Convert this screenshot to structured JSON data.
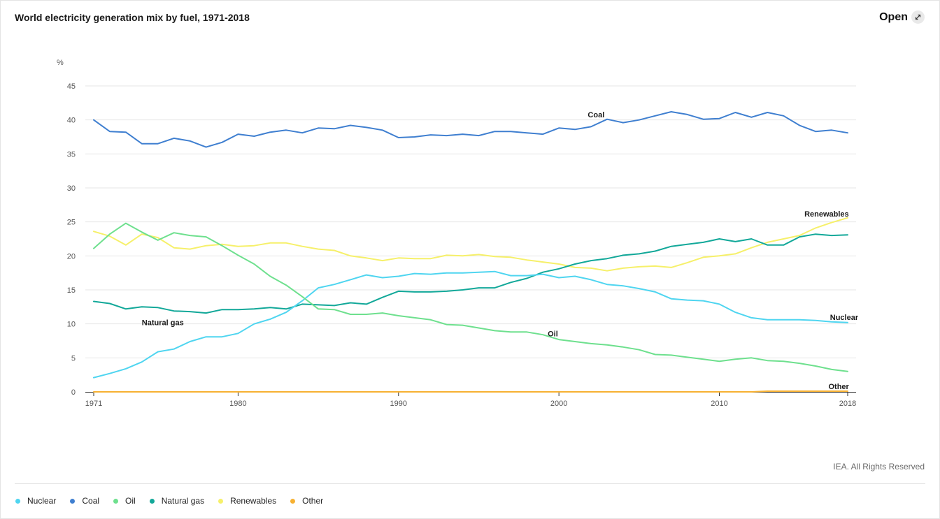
{
  "header": {
    "title": "World electricity generation mix by fuel, 1971-2018",
    "open_label": "Open",
    "open_icon": "expand-arrows-icon"
  },
  "footer": {
    "credit": "IEA. All Rights Reserved"
  },
  "colors": {
    "Nuclear": "#4fd5f0",
    "Coal": "#3f7fd0",
    "Oil": "#6ee08e",
    "Natural gas": "#12a899",
    "Renewables": "#f6f06a",
    "Other": "#f7b132"
  },
  "legend": [
    "Nuclear",
    "Coal",
    "Oil",
    "Natural gas",
    "Renewables",
    "Other"
  ],
  "chart_data": {
    "type": "line",
    "title": "World electricity generation mix by fuel, 1971-2018",
    "ylabel": "%",
    "xlabel": "",
    "ylim": [
      0,
      45
    ],
    "yticks": [
      0,
      5,
      10,
      15,
      20,
      25,
      30,
      35,
      40,
      45
    ],
    "xticks": [
      1971,
      1980,
      1990,
      2000,
      2010,
      2018
    ],
    "grid": true,
    "legend_position": "bottom",
    "x": [
      1971,
      1972,
      1973,
      1974,
      1975,
      1976,
      1977,
      1978,
      1979,
      1980,
      1981,
      1982,
      1983,
      1984,
      1985,
      1986,
      1987,
      1988,
      1989,
      1990,
      1991,
      1992,
      1993,
      1994,
      1995,
      1996,
      1997,
      1998,
      1999,
      2000,
      2001,
      2002,
      2003,
      2004,
      2005,
      2006,
      2007,
      2008,
      2009,
      2010,
      2011,
      2012,
      2013,
      2014,
      2015,
      2016,
      2017,
      2018
    ],
    "series": [
      {
        "name": "Coal",
        "values": [
          40.0,
          38.3,
          38.2,
          36.5,
          36.5,
          37.3,
          36.9,
          36.0,
          36.7,
          37.9,
          37.6,
          38.2,
          38.5,
          38.1,
          38.8,
          38.7,
          39.2,
          38.9,
          38.5,
          37.4,
          37.5,
          37.8,
          37.7,
          37.9,
          37.7,
          38.3,
          38.3,
          38.1,
          37.9,
          38.8,
          38.6,
          39.0,
          40.1,
          39.6,
          40.0,
          40.6,
          41.2,
          40.8,
          40.1,
          40.2,
          41.1,
          40.4,
          41.1,
          40.6,
          39.2,
          38.3,
          38.5,
          38.1
        ],
        "label_year": 2001.8,
        "label_value": 40.8
      },
      {
        "name": "Renewables",
        "values": [
          23.6,
          22.9,
          21.6,
          23.2,
          22.7,
          21.2,
          21.0,
          21.5,
          21.7,
          21.4,
          21.5,
          21.9,
          21.9,
          21.4,
          21.0,
          20.8,
          20.0,
          19.7,
          19.3,
          19.7,
          19.6,
          19.6,
          20.1,
          20.0,
          20.2,
          19.9,
          19.8,
          19.4,
          19.1,
          18.8,
          18.3,
          18.2,
          17.8,
          18.2,
          18.4,
          18.5,
          18.3,
          19.0,
          19.8,
          20.0,
          20.3,
          21.2,
          22.0,
          22.5,
          23.0,
          24.1,
          24.9,
          25.6
        ],
        "label_year": 2015.3,
        "label_value": 26.2
      },
      {
        "name": "Natural gas",
        "values": [
          13.3,
          13.0,
          12.2,
          12.5,
          12.4,
          11.9,
          11.8,
          11.6,
          12.1,
          12.1,
          12.2,
          12.4,
          12.2,
          12.9,
          12.8,
          12.7,
          13.1,
          12.9,
          13.9,
          14.8,
          14.7,
          14.7,
          14.8,
          15.0,
          15.3,
          15.3,
          16.1,
          16.7,
          17.6,
          18.1,
          18.8,
          19.3,
          19.6,
          20.1,
          20.3,
          20.7,
          21.4,
          21.7,
          22.0,
          22.5,
          22.1,
          22.5,
          21.6,
          21.6,
          22.8,
          23.2,
          23.0,
          23.1
        ],
        "label_year": 1974,
        "label_value": 10.2
      },
      {
        "name": "Nuclear",
        "values": [
          2.1,
          2.7,
          3.4,
          4.4,
          5.9,
          6.3,
          7.4,
          8.1,
          8.1,
          8.6,
          10.0,
          10.7,
          11.7,
          13.4,
          15.3,
          15.8,
          16.5,
          17.2,
          16.8,
          17.0,
          17.4,
          17.3,
          17.5,
          17.5,
          17.6,
          17.7,
          17.1,
          17.1,
          17.3,
          16.8,
          17.0,
          16.5,
          15.8,
          15.6,
          15.2,
          14.7,
          13.7,
          13.5,
          13.4,
          12.9,
          11.7,
          10.9,
          10.6,
          10.6,
          10.6,
          10.5,
          10.3,
          10.2
        ],
        "label_year": 2016.9,
        "label_value": 11.0
      },
      {
        "name": "Oil",
        "values": [
          21.1,
          23.2,
          24.8,
          23.5,
          22.3,
          23.4,
          23.0,
          22.8,
          21.5,
          20.1,
          18.8,
          17.0,
          15.7,
          14.0,
          12.2,
          12.1,
          11.4,
          11.4,
          11.6,
          11.2,
          10.9,
          10.6,
          9.9,
          9.8,
          9.4,
          9.0,
          8.8,
          8.8,
          8.4,
          7.7,
          7.4,
          7.1,
          6.9,
          6.6,
          6.2,
          5.5,
          5.4,
          5.1,
          4.8,
          4.5,
          4.8,
          5.0,
          4.6,
          4.5,
          4.2,
          3.8,
          3.3,
          3.0
        ],
        "label_year": 1999.3,
        "label_value": 8.6
      },
      {
        "name": "Other",
        "values": [
          0.0,
          0.0,
          0.0,
          0.0,
          0.0,
          0.0,
          0.0,
          0.0,
          0.0,
          0.0,
          0.0,
          0.0,
          0.0,
          0.0,
          0.0,
          0.0,
          0.0,
          0.0,
          0.0,
          0.0,
          0.0,
          0.0,
          0.0,
          0.0,
          0.0,
          0.0,
          0.0,
          0.0,
          0.0,
          0.0,
          0.0,
          0.0,
          0.0,
          0.0,
          0.0,
          0.0,
          0.0,
          0.0,
          0.0,
          0.0,
          0.0,
          0.0,
          0.1,
          0.1,
          0.1,
          0.1,
          0.1,
          0.1
        ],
        "label_year": 2016.8,
        "label_value": 0.8
      }
    ]
  }
}
